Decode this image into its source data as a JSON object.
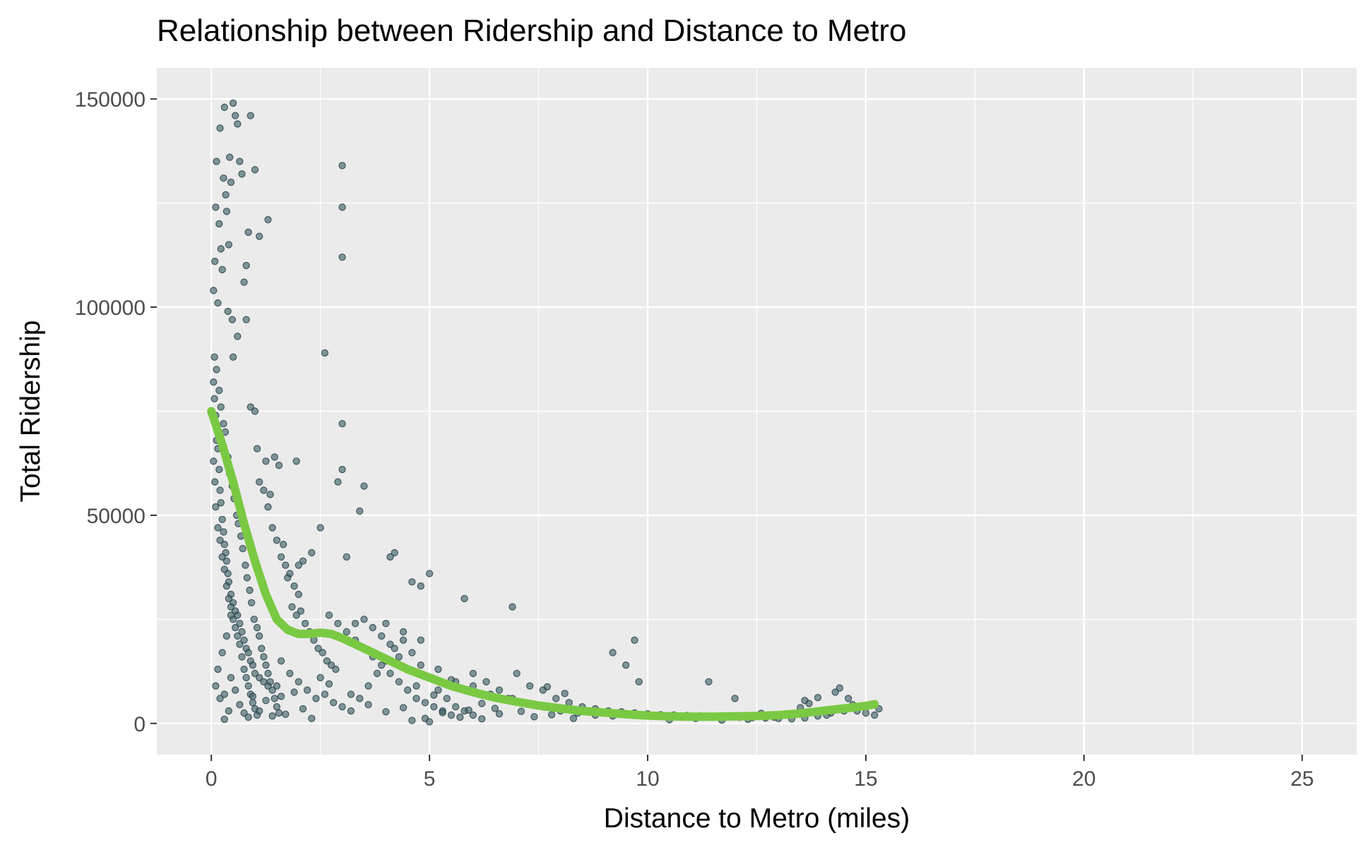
{
  "chart_data": {
    "type": "scatter",
    "title": "Relationship between Ridership and Distance to Metro",
    "xlabel": "Distance to Metro (miles)",
    "ylabel": "Total Ridership",
    "xlim": [
      -1.25,
      26.25
    ],
    "ylim": [
      -7500,
      157500
    ],
    "x_ticks": [
      0,
      5,
      10,
      15,
      20,
      25
    ],
    "y_ticks": [
      0,
      50000,
      100000,
      150000
    ],
    "x_tick_labels": [
      "0",
      "5",
      "10",
      "15",
      "20",
      "25"
    ],
    "y_tick_labels": [
      "0",
      "50000",
      "100000",
      "150000"
    ],
    "grid": true,
    "point_color": "#3d6066",
    "trend_color": "#7ac943",
    "panel_background": "#ebebeb",
    "points": [
      [
        0.05,
        104000
      ],
      [
        0.08,
        111000
      ],
      [
        0.1,
        124000
      ],
      [
        0.12,
        135000
      ],
      [
        0.15,
        101000
      ],
      [
        0.18,
        120000
      ],
      [
        0.2,
        143000
      ],
      [
        0.22,
        114000
      ],
      [
        0.25,
        109000
      ],
      [
        0.28,
        131000
      ],
      [
        0.3,
        148000
      ],
      [
        0.33,
        127000
      ],
      [
        0.35,
        123000
      ],
      [
        0.38,
        99000
      ],
      [
        0.4,
        115000
      ],
      [
        0.42,
        136000
      ],
      [
        0.45,
        130000
      ],
      [
        0.48,
        97000
      ],
      [
        0.5,
        149000
      ],
      [
        0.55,
        146000
      ],
      [
        0.6,
        144000
      ],
      [
        0.65,
        135000
      ],
      [
        0.7,
        132000
      ],
      [
        0.8,
        110000
      ],
      [
        0.85,
        118000
      ],
      [
        0.9,
        146000
      ],
      [
        1.0,
        133000
      ],
      [
        0.75,
        106000
      ],
      [
        0.8,
        97000
      ],
      [
        0.6,
        93000
      ],
      [
        0.5,
        88000
      ],
      [
        0.05,
        82000
      ],
      [
        0.07,
        78000
      ],
      [
        0.1,
        74000
      ],
      [
        0.12,
        68000
      ],
      [
        0.15,
        66000
      ],
      [
        0.18,
        61000
      ],
      [
        0.2,
        56000
      ],
      [
        0.22,
        53000
      ],
      [
        0.25,
        49000
      ],
      [
        0.28,
        46000
      ],
      [
        0.3,
        43000
      ],
      [
        0.33,
        41000
      ],
      [
        0.35,
        39000
      ],
      [
        0.38,
        36000
      ],
      [
        0.4,
        34000
      ],
      [
        0.45,
        31000
      ],
      [
        0.5,
        29000
      ],
      [
        0.55,
        27000
      ],
      [
        0.6,
        26000
      ],
      [
        0.65,
        24000
      ],
      [
        0.7,
        22000
      ],
      [
        0.75,
        20000
      ],
      [
        0.8,
        18000
      ],
      [
        0.85,
        17000
      ],
      [
        0.9,
        15000
      ],
      [
        0.95,
        14000
      ],
      [
        1.0,
        12000
      ],
      [
        1.1,
        11000
      ],
      [
        1.2,
        10000
      ],
      [
        1.3,
        9000
      ],
      [
        0.05,
        63000
      ],
      [
        0.08,
        58000
      ],
      [
        0.1,
        52000
      ],
      [
        0.15,
        47000
      ],
      [
        0.2,
        44000
      ],
      [
        0.25,
        40000
      ],
      [
        0.3,
        37000
      ],
      [
        0.35,
        33000
      ],
      [
        0.4,
        30000
      ],
      [
        0.45,
        28000
      ],
      [
        0.5,
        25000
      ],
      [
        0.55,
        23000
      ],
      [
        0.6,
        21000
      ],
      [
        0.65,
        19000
      ],
      [
        0.7,
        16000
      ],
      [
        0.75,
        13000
      ],
      [
        0.8,
        11000
      ],
      [
        0.85,
        9000
      ],
      [
        0.9,
        7000
      ],
      [
        0.95,
        5000
      ],
      [
        1.0,
        3500
      ],
      [
        1.05,
        2000
      ],
      [
        0.3,
        1000
      ],
      [
        0.4,
        3000
      ],
      [
        0.2,
        6000
      ],
      [
        0.1,
        9000
      ],
      [
        0.15,
        13000
      ],
      [
        0.25,
        17000
      ],
      [
        0.35,
        21000
      ],
      [
        0.45,
        26000
      ],
      [
        0.07,
        88000
      ],
      [
        0.12,
        85000
      ],
      [
        0.18,
        80000
      ],
      [
        0.22,
        76000
      ],
      [
        0.28,
        72000
      ],
      [
        0.32,
        70000
      ],
      [
        0.38,
        64000
      ],
      [
        0.42,
        60000
      ],
      [
        0.48,
        57000
      ],
      [
        0.52,
        54000
      ],
      [
        0.58,
        50000
      ],
      [
        0.62,
        48000
      ],
      [
        0.68,
        45000
      ],
      [
        0.72,
        42000
      ],
      [
        0.78,
        38000
      ],
      [
        0.82,
        35000
      ],
      [
        0.88,
        32000
      ],
      [
        0.92,
        29000
      ],
      [
        0.98,
        25000
      ],
      [
        1.05,
        23000
      ],
      [
        1.1,
        21000
      ],
      [
        1.15,
        18000
      ],
      [
        1.2,
        16000
      ],
      [
        1.25,
        14000
      ],
      [
        1.3,
        12000
      ],
      [
        1.35,
        10000
      ],
      [
        1.4,
        8000
      ],
      [
        1.45,
        6000
      ],
      [
        1.5,
        4000
      ],
      [
        1.55,
        2500
      ],
      [
        0.9,
        76000
      ],
      [
        1.0,
        75000
      ],
      [
        1.05,
        66000
      ],
      [
        1.1,
        58000
      ],
      [
        1.2,
        56000
      ],
      [
        1.3,
        52000
      ],
      [
        1.4,
        47000
      ],
      [
        1.5,
        44000
      ],
      [
        1.6,
        40000
      ],
      [
        1.7,
        38000
      ],
      [
        1.8,
        36000
      ],
      [
        1.9,
        33000
      ],
      [
        2.0,
        31000
      ],
      [
        1.25,
        63000
      ],
      [
        1.45,
        64000
      ],
      [
        1.55,
        62000
      ],
      [
        1.35,
        55000
      ],
      [
        1.65,
        43000
      ],
      [
        1.75,
        35000
      ],
      [
        1.85,
        28000
      ],
      [
        1.95,
        26000
      ],
      [
        2.05,
        27000
      ],
      [
        2.15,
        24000
      ],
      [
        2.25,
        22000
      ],
      [
        2.35,
        20000
      ],
      [
        2.45,
        18000
      ],
      [
        2.55,
        17000
      ],
      [
        2.65,
        15000
      ],
      [
        2.75,
        14000
      ],
      [
        2.85,
        13000
      ],
      [
        1.1,
        117000
      ],
      [
        1.3,
        121000
      ],
      [
        2.6,
        89000
      ],
      [
        3.0,
        134000
      ],
      [
        3.0,
        124000
      ],
      [
        3.0,
        112000
      ],
      [
        3.0,
        72000
      ],
      [
        3.0,
        61000
      ],
      [
        2.9,
        58000
      ],
      [
        3.5,
        57000
      ],
      [
        3.4,
        51000
      ],
      [
        2.5,
        47000
      ],
      [
        2.3,
        41000
      ],
      [
        2.1,
        39000
      ],
      [
        2.0,
        38000
      ],
      [
        1.95,
        63000
      ],
      [
        3.1,
        40000
      ],
      [
        4.1,
        40000
      ],
      [
        4.2,
        41000
      ],
      [
        4.6,
        34000
      ],
      [
        4.8,
        33000
      ],
      [
        5.0,
        36000
      ],
      [
        5.8,
        30000
      ],
      [
        6.9,
        28000
      ],
      [
        9.7,
        20000
      ],
      [
        9.2,
        17000
      ],
      [
        9.5,
        14000
      ],
      [
        9.8,
        10000
      ],
      [
        11.4,
        10000
      ],
      [
        12.0,
        6000
      ],
      [
        1.6,
        15000
      ],
      [
        1.8,
        12000
      ],
      [
        2.0,
        10000
      ],
      [
        2.2,
        8000
      ],
      [
        2.4,
        6000
      ],
      [
        2.6,
        7000
      ],
      [
        2.8,
        5000
      ],
      [
        3.0,
        4000
      ],
      [
        3.2,
        3000
      ],
      [
        3.4,
        6000
      ],
      [
        3.6,
        9000
      ],
      [
        3.8,
        12000
      ],
      [
        4.0,
        15000
      ],
      [
        4.2,
        18000
      ],
      [
        4.4,
        20000
      ],
      [
        4.6,
        17000
      ],
      [
        4.8,
        14000
      ],
      [
        5.0,
        11000
      ],
      [
        5.2,
        8000
      ],
      [
        5.4,
        6000
      ],
      [
        5.6,
        4000
      ],
      [
        5.8,
        3000
      ],
      [
        6.0,
        2000
      ],
      [
        3.3,
        24000
      ],
      [
        3.5,
        25000
      ],
      [
        3.7,
        23000
      ],
      [
        3.9,
        21000
      ],
      [
        4.1,
        19000
      ],
      [
        4.3,
        16000
      ],
      [
        4.5,
        13000
      ],
      [
        2.7,
        26000
      ],
      [
        2.9,
        24000
      ],
      [
        3.1,
        22000
      ],
      [
        3.3,
        20000
      ],
      [
        3.5,
        18000
      ],
      [
        3.7,
        16000
      ],
      [
        3.9,
        14000
      ],
      [
        4.1,
        12000
      ],
      [
        4.3,
        10000
      ],
      [
        4.5,
        8000
      ],
      [
        4.7,
        6000
      ],
      [
        4.9,
        5000
      ],
      [
        5.1,
        4000
      ],
      [
        5.3,
        3000
      ],
      [
        5.5,
        2000
      ],
      [
        5.7,
        1500
      ],
      [
        4.0,
        24000
      ],
      [
        4.4,
        22000
      ],
      [
        4.8,
        20000
      ],
      [
        5.2,
        13000
      ],
      [
        5.6,
        10000
      ],
      [
        6.0,
        9000
      ],
      [
        6.4,
        7000
      ],
      [
        6.8,
        6000
      ],
      [
        7.2,
        5000
      ],
      [
        7.6,
        4000
      ],
      [
        8.0,
        3000
      ],
      [
        8.4,
        2500
      ],
      [
        8.8,
        2000
      ],
      [
        9.2,
        1800
      ],
      [
        6.0,
        12000
      ],
      [
        6.3,
        10000
      ],
      [
        6.6,
        8000
      ],
      [
        6.9,
        6000
      ],
      [
        7.0,
        12000
      ],
      [
        7.3,
        9000
      ],
      [
        7.6,
        8000
      ],
      [
        7.9,
        6000
      ],
      [
        8.2,
        5000
      ],
      [
        8.5,
        4000
      ],
      [
        8.8,
        3500
      ],
      [
        9.1,
        3000
      ],
      [
        9.4,
        2800
      ],
      [
        9.7,
        2500
      ],
      [
        10.0,
        2300
      ],
      [
        10.3,
        2100
      ],
      [
        10.6,
        2000
      ],
      [
        10.9,
        1900
      ],
      [
        11.2,
        1800
      ],
      [
        11.5,
        1700
      ],
      [
        11.8,
        1600
      ],
      [
        12.1,
        1500
      ],
      [
        12.4,
        1400
      ],
      [
        12.7,
        1300
      ],
      [
        13.0,
        1200
      ],
      [
        13.3,
        1100
      ],
      [
        13.6,
        1300
      ],
      [
        13.9,
        1800
      ],
      [
        14.2,
        2500
      ],
      [
        14.5,
        3000
      ],
      [
        13.6,
        5500
      ],
      [
        13.7,
        4800
      ],
      [
        13.9,
        6200
      ],
      [
        14.3,
        7500
      ],
      [
        14.4,
        8500
      ],
      [
        14.6,
        6000
      ],
      [
        14.7,
        4500
      ],
      [
        14.8,
        3000
      ],
      [
        15.0,
        2500
      ],
      [
        15.2,
        2000
      ],
      [
        15.3,
        3500
      ],
      [
        14.1,
        2000
      ],
      [
        13.5,
        3800
      ],
      [
        13.2,
        2200
      ],
      [
        12.9,
        1500
      ],
      [
        12.6,
        2400
      ],
      [
        12.3,
        1000
      ],
      [
        11.7,
        800
      ],
      [
        11.1,
        1200
      ],
      [
        10.5,
        900
      ],
      [
        8.3,
        1200
      ],
      [
        7.8,
        2100
      ],
      [
        7.4,
        1600
      ],
      [
        6.6,
        2300
      ],
      [
        6.2,
        1100
      ],
      [
        5.9,
        3200
      ],
      [
        5.3,
        2600
      ],
      [
        4.9,
        1200
      ],
      [
        4.6,
        700
      ],
      [
        5.0,
        400
      ],
      [
        0.3,
        7000
      ],
      [
        0.45,
        11000
      ],
      [
        0.55,
        8000
      ],
      [
        0.65,
        4500
      ],
      [
        0.75,
        2500
      ],
      [
        0.85,
        1500
      ],
      [
        0.95,
        6500
      ],
      [
        1.1,
        3000
      ],
      [
        1.25,
        5500
      ],
      [
        1.4,
        1800
      ],
      [
        1.5,
        9000
      ],
      [
        1.6,
        6500
      ],
      [
        1.7,
        2200
      ],
      [
        1.9,
        7500
      ],
      [
        2.1,
        3500
      ],
      [
        2.3,
        1200
      ],
      [
        2.5,
        11000
      ],
      [
        2.7,
        9500
      ],
      [
        3.2,
        7000
      ],
      [
        3.6,
        4500
      ],
      [
        4.0,
        2800
      ],
      [
        4.4,
        3800
      ],
      [
        4.7,
        9000
      ],
      [
        5.1,
        6800
      ],
      [
        5.5,
        10500
      ],
      [
        6.2,
        4800
      ],
      [
        6.5,
        3600
      ],
      [
        7.1,
        2900
      ],
      [
        7.7,
        8800
      ],
      [
        8.1,
        7200
      ]
    ],
    "trend": [
      [
        0.0,
        75000
      ],
      [
        0.25,
        67000
      ],
      [
        0.5,
        58000
      ],
      [
        0.75,
        48000
      ],
      [
        1.0,
        39000
      ],
      [
        1.25,
        31000
      ],
      [
        1.5,
        25000
      ],
      [
        1.75,
        22500
      ],
      [
        2.0,
        21500
      ],
      [
        2.25,
        21500
      ],
      [
        2.5,
        21800
      ],
      [
        2.75,
        21500
      ],
      [
        3.0,
        20500
      ],
      [
        3.5,
        18000
      ],
      [
        4.0,
        15500
      ],
      [
        4.5,
        13000
      ],
      [
        5.0,
        11000
      ],
      [
        5.5,
        9000
      ],
      [
        6.0,
        7500
      ],
      [
        6.5,
        6200
      ],
      [
        7.0,
        5200
      ],
      [
        7.5,
        4300
      ],
      [
        8.0,
        3600
      ],
      [
        8.5,
        3000
      ],
      [
        9.0,
        2600
      ],
      [
        9.5,
        2200
      ],
      [
        10.0,
        1900
      ],
      [
        10.5,
        1700
      ],
      [
        11.0,
        1600
      ],
      [
        11.5,
        1600
      ],
      [
        12.0,
        1700
      ],
      [
        12.5,
        1800
      ],
      [
        13.0,
        2000
      ],
      [
        13.5,
        2400
      ],
      [
        14.0,
        3000
      ],
      [
        14.5,
        3600
      ],
      [
        15.0,
        4200
      ],
      [
        15.2,
        4600
      ]
    ]
  }
}
